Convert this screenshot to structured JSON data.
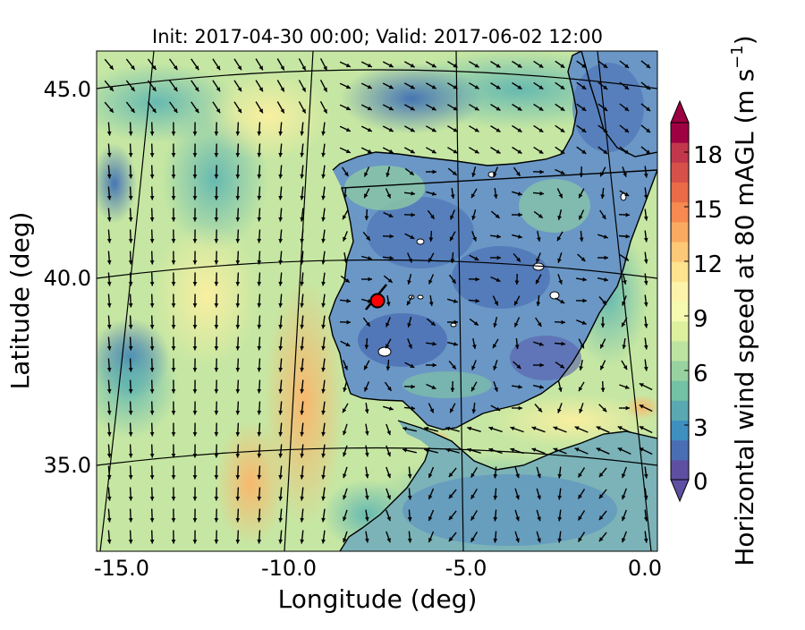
{
  "title": "Init: 2017-04-30 00:00; Valid: 2017-06-02 12:00",
  "x_axis": {
    "label": "Longitude (deg)",
    "ticks": [
      "-15.0",
      "-10.0",
      "-5.0",
      "0.0"
    ]
  },
  "y_axis": {
    "label": "Latitude (deg)",
    "ticks": [
      "45.0",
      "40.0",
      "35.0"
    ]
  },
  "colorbar": {
    "label_prefix": "Horizontal wind speed at 80 mAGL (m s",
    "label_exponent": "−1",
    "label_suffix": ")",
    "ticks": [
      "0",
      "3",
      "6",
      "9",
      "12",
      "15",
      "18"
    ],
    "colors": [
      "#5e4fa2",
      "#4a6eb3",
      "#3f8fbf",
      "#5aa9b2",
      "#74c1a5",
      "#98d2a0",
      "#bde4a0",
      "#dcf09e",
      "#f4fab0",
      "#fff3ab",
      "#fee28e",
      "#fdc877",
      "#fbaa62",
      "#f68a51",
      "#ea6b48",
      "#d8504a",
      "#c2374c",
      "#9e0142"
    ],
    "extend": "both"
  },
  "map": {
    "projection": "curved graticule",
    "marker": {
      "lon": -7.6,
      "lat": 39.3,
      "color": "#ff0000"
    },
    "colors": {
      "land_low": "#4d78b8",
      "sea_mid": "#a8dc9f",
      "sea_high": "#fde38f",
      "coast": "#000000",
      "grid": "#000000"
    }
  }
}
